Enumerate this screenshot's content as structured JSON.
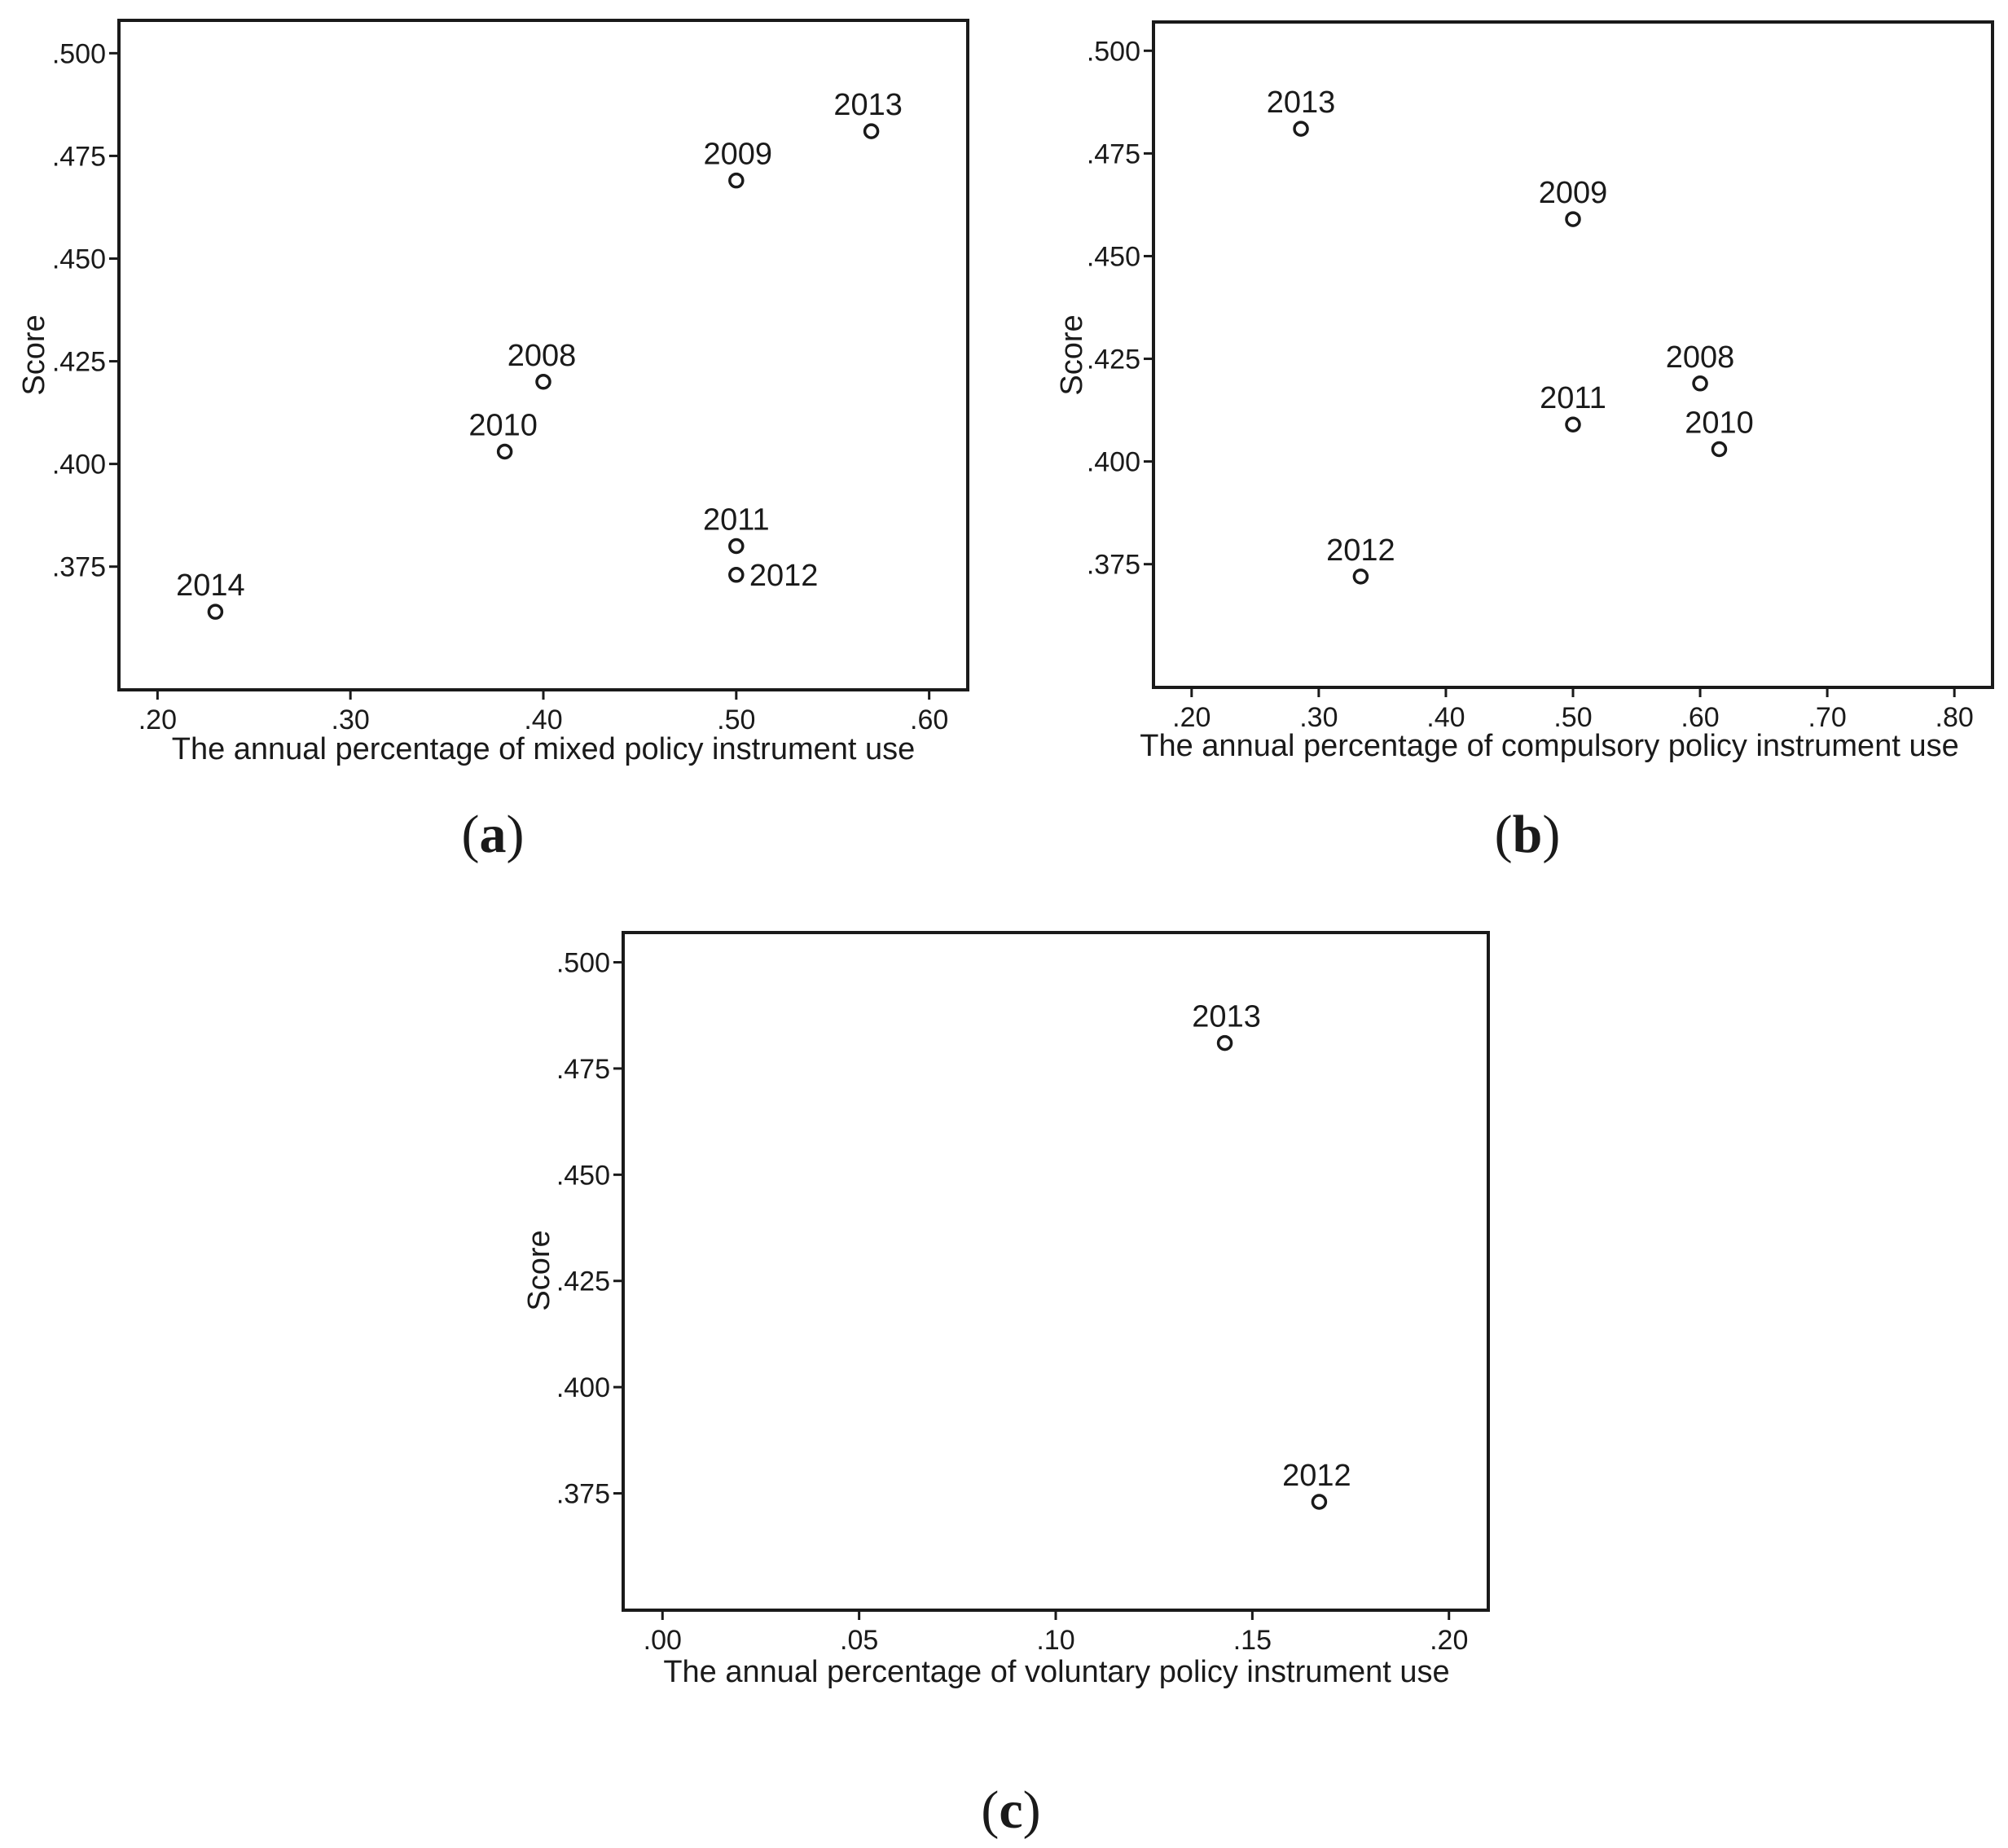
{
  "panels": [
    {
      "panel_label": "(a)",
      "chart_data": {
        "type": "scatter",
        "xlabel": "The annual percentage of mixed policy instrument use",
        "ylabel": "Score",
        "xlim": [
          0.18,
          0.62
        ],
        "ylim": [
          0.345,
          0.508
        ],
        "xticks": [
          0.2,
          0.3,
          0.4,
          0.5,
          0.6
        ],
        "xtick_labels": [
          ".20",
          ".30",
          ".40",
          ".50",
          ".60"
        ],
        "yticks": [
          0.375,
          0.4,
          0.425,
          0.45,
          0.475,
          0.5
        ],
        "ytick_labels": [
          ".375",
          ".400",
          ".425",
          ".450",
          ".475",
          ".500"
        ],
        "points": [
          {
            "label": "2008",
            "x": 0.4,
            "y": 0.42
          },
          {
            "label": "2009",
            "x": 0.5,
            "y": 0.469
          },
          {
            "label": "2010",
            "x": 0.38,
            "y": 0.403
          },
          {
            "label": "2011",
            "x": 0.5,
            "y": 0.38
          },
          {
            "label": "2012",
            "x": 0.5,
            "y": 0.373
          },
          {
            "label": "2013",
            "x": 0.57,
            "y": 0.481
          },
          {
            "label": "2014",
            "x": 0.23,
            "y": 0.364
          }
        ],
        "legend": "none",
        "grid": false
      }
    },
    {
      "panel_label": "(b)",
      "chart_data": {
        "type": "scatter",
        "xlabel": "The annual percentage of compulsory policy instrument use",
        "ylabel": "Score",
        "xlim": [
          0.17,
          0.83
        ],
        "ylim": [
          0.345,
          0.507
        ],
        "xticks": [
          0.2,
          0.3,
          0.4,
          0.5,
          0.6,
          0.7,
          0.8
        ],
        "xtick_labels": [
          ".20",
          ".30",
          ".40",
          ".50",
          ".60",
          ".70",
          ".80"
        ],
        "yticks": [
          0.375,
          0.4,
          0.425,
          0.45,
          0.475,
          0.5
        ],
        "ytick_labels": [
          ".375",
          ".400",
          ".425",
          ".450",
          ".475",
          ".500"
        ],
        "points": [
          {
            "label": "2008",
            "x": 0.6,
            "y": 0.419
          },
          {
            "label": "2009",
            "x": 0.5,
            "y": 0.459
          },
          {
            "label": "2010",
            "x": 0.615,
            "y": 0.403
          },
          {
            "label": "2011",
            "x": 0.5,
            "y": 0.409
          },
          {
            "label": "2012",
            "x": 0.333,
            "y": 0.372
          },
          {
            "label": "2013",
            "x": 0.286,
            "y": 0.481
          }
        ],
        "legend": "none",
        "grid": false
      }
    },
    {
      "panel_label": "(c)",
      "chart_data": {
        "type": "scatter",
        "xlabel": "The annual percentage of voluntary policy instrument use",
        "ylabel": "Score",
        "xlim": [
          -0.01,
          0.21
        ],
        "ylim": [
          0.3475,
          0.507
        ],
        "xticks": [
          0.0,
          0.05,
          0.1,
          0.15,
          0.2
        ],
        "xtick_labels": [
          ".00",
          ".05",
          ".10",
          ".15",
          ".20"
        ],
        "yticks": [
          0.375,
          0.4,
          0.425,
          0.45,
          0.475,
          0.5
        ],
        "ytick_labels": [
          ".375",
          ".400",
          ".425",
          ".450",
          ".475",
          ".500"
        ],
        "points": [
          {
            "label": "2012",
            "x": 0.167,
            "y": 0.373
          },
          {
            "label": "2013",
            "x": 0.143,
            "y": 0.481
          }
        ],
        "legend": "none",
        "grid": false
      }
    }
  ]
}
